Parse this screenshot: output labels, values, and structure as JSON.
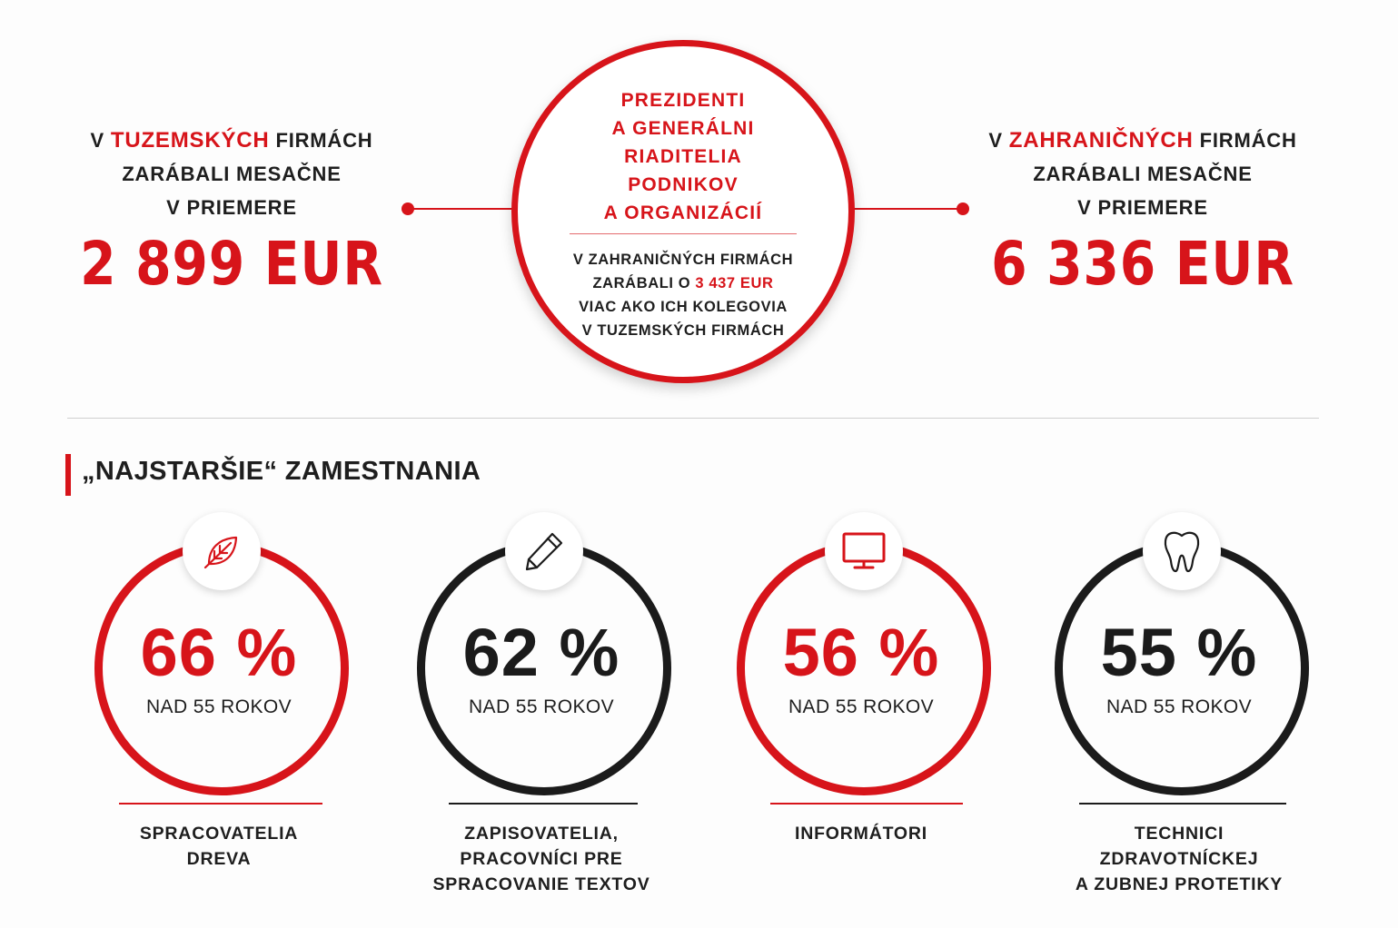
{
  "top": {
    "left": {
      "line1_prefix": "V ",
      "line1_highlight": "TUZEMSKÝCH",
      "line1_suffix": " FIRMÁCH",
      "line2": "ZARÁBALI MESAČNE",
      "line3": "V PRIEMERE",
      "amount": "2 899 EUR"
    },
    "center": {
      "title_lines": [
        "PREZIDENTI",
        "A GENERÁLNI",
        "RIADITELIA",
        "PODNIKOV",
        "A ORGANIZÁCIÍ"
      ],
      "body_line1": "V ZAHRANIČNÝCH FIRMÁCH",
      "body_line2_prefix": "ZARÁBALI O ",
      "body_line2_highlight": "3 437 EUR",
      "body_line3": "VIAC AKO ICH KOLEGOVIA",
      "body_line4": "V TUZEMSKÝCH FIRMÁCH"
    },
    "right": {
      "line1_prefix": "V ",
      "line1_highlight": "ZAHRANIČNÝCH",
      "line1_suffix": " FIRMÁCH",
      "line2": "ZARÁBALI MESAČNE",
      "line3": "V PRIEMERE",
      "amount": "6 336 EUR"
    }
  },
  "section": {
    "title": "„NAJSTARŠIE“ ZAMESTNANIA"
  },
  "stats": [
    {
      "percent": "66 %",
      "sub": "NAD 55 ROKOV",
      "icon": "leaf-icon",
      "caption": [
        "SPRACOVATELIA",
        "DREVA"
      ],
      "color": "red",
      "share": 0.66
    },
    {
      "percent": "62 %",
      "sub": "NAD 55 ROKOV",
      "icon": "pencil-icon",
      "caption": [
        "ZAPISOVATELIA,",
        "PRACOVNÍCI PRE",
        "SPRACOVANIE TEXTOV"
      ],
      "color": "black",
      "share": 0.62
    },
    {
      "percent": "56 %",
      "sub": "NAD 55 ROKOV",
      "icon": "monitor-icon",
      "caption": [
        "INFORMÁTORI"
      ],
      "color": "red",
      "share": 0.56
    },
    {
      "percent": "55 %",
      "sub": "NAD 55 ROKOV",
      "icon": "tooth-icon",
      "caption": [
        "TECHNICI",
        "ZDRAVOTNÍCKEJ",
        "A ZUBNEJ PROTETIKY"
      ],
      "color": "black",
      "share": 0.55
    }
  ],
  "colors": {
    "accent": "#d7141a",
    "dark": "#1b1b1b"
  }
}
